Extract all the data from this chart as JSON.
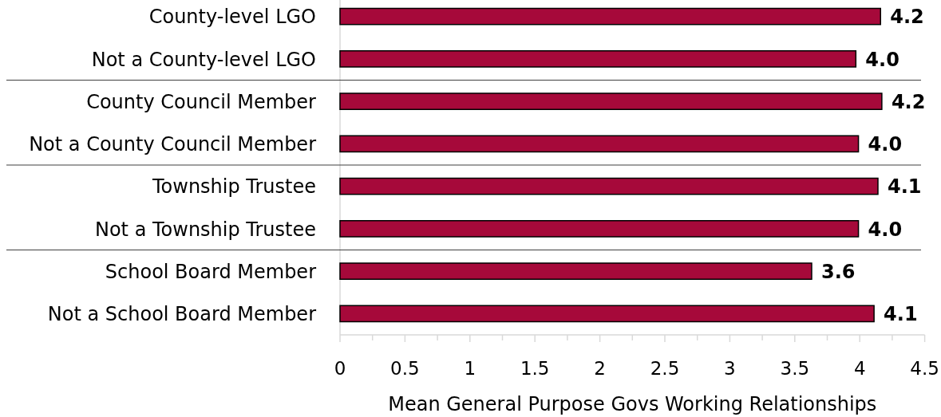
{
  "chart_data": {
    "type": "bar",
    "orientation": "horizontal",
    "categories": [
      "County-level LGO",
      "Not a County-level LGO",
      "County Council Member",
      "Not a County Council Member",
      "Township Trustee",
      "Not a Township Trustee",
      "School Board Member",
      "Not a School Board Member"
    ],
    "values": [
      4.16,
      3.97,
      4.17,
      3.99,
      4.14,
      3.99,
      3.63,
      4.11
    ],
    "value_labels": [
      "4.2",
      "4.0",
      "4.2",
      "4.0",
      "4.1",
      "4.0",
      "3.6",
      "4.1"
    ],
    "color": "#a6093a",
    "xlim": [
      0,
      4.5
    ],
    "xticks": [
      0,
      0.5,
      1,
      1.5,
      2,
      2.5,
      3,
      3.5,
      4,
      4.5
    ],
    "xlabel": "Mean General Purpose Govs Working Relationships"
  }
}
